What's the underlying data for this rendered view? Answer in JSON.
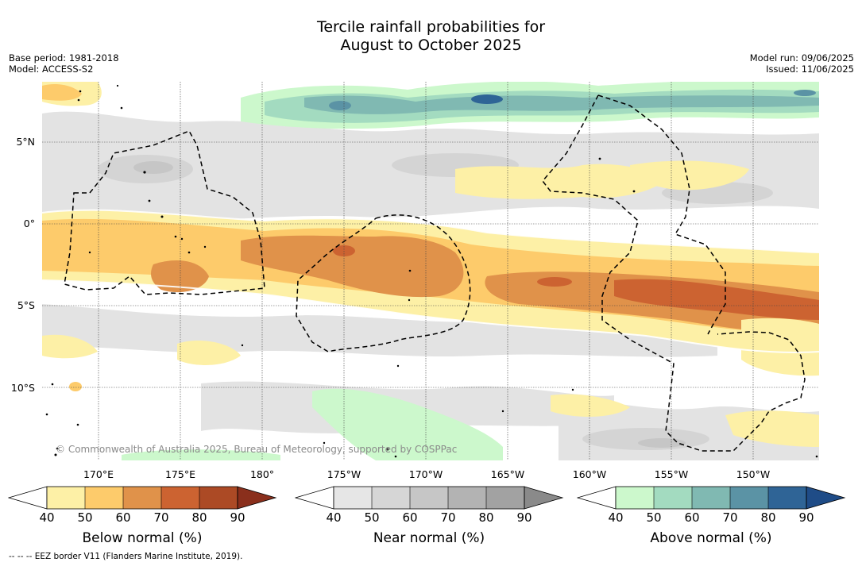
{
  "title_line1": "Tercile rainfall probabilities for",
  "title_line2": "August to October 2025",
  "base_period": "Base period: 1981-2018",
  "model": "Model: ACCESS-S2",
  "model_run": "Model run: 09/06/2025",
  "issued": "Issued: 11/06/2025",
  "lat_labels": [
    "5°N",
    "0°",
    "5°S",
    "10°S"
  ],
  "lon_labels": [
    "170°E",
    "175°E",
    "180°",
    "175°W",
    "170°W",
    "165°W",
    "160°W",
    "155°W",
    "150°W"
  ],
  "copyright": "© Commonwealth of Australia 2025, Bureau of Meteorology, supported by COSPPac",
  "footnote": "--  --  -- EEZ border V11 (Flanders Marine Institute, 2019).",
  "colorbars": [
    {
      "title": "Below normal (%)",
      "ticks": [
        "40",
        "50",
        "60",
        "70",
        "80",
        "90"
      ],
      "colors": [
        "#fdf0a6",
        "#fdcb6b",
        "#e0924a",
        "#cc6331",
        "#ac4a25",
        "#8a2f1c"
      ]
    },
    {
      "title": "Near normal (%)",
      "ticks": [
        "40",
        "50",
        "60",
        "70",
        "80",
        "90"
      ],
      "colors": [
        "#e6e6e6",
        "#d6d6d6",
        "#c6c6c6",
        "#b3b3b3",
        "#a2a2a2",
        "#8a8a8a"
      ]
    },
    {
      "title": "Above normal (%)",
      "ticks": [
        "40",
        "50",
        "60",
        "70",
        "80",
        "90"
      ],
      "colors": [
        "#ccf8cc",
        "#a3dbc0",
        "#80b9b2",
        "#5b93a5",
        "#2f6496",
        "#1f4c87"
      ]
    }
  ]
}
